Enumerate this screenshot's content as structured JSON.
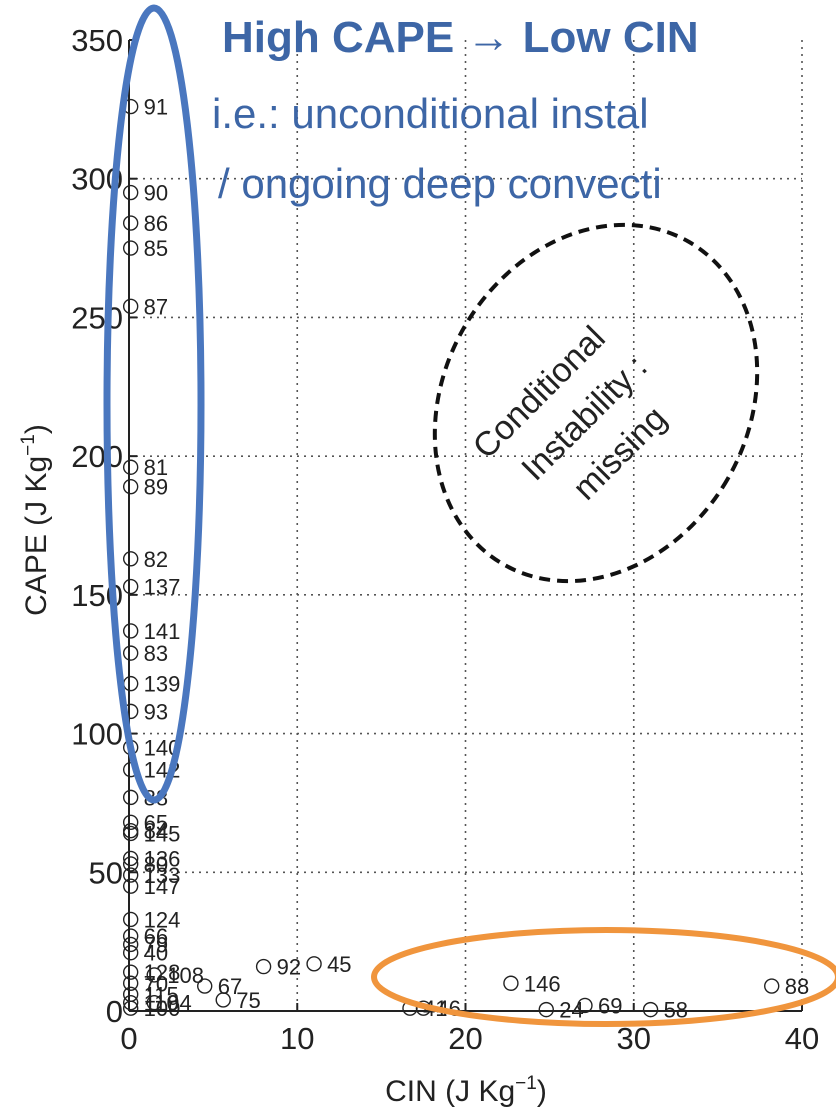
{
  "chart_data": {
    "type": "scatter",
    "xlabel": "CIN (J Kg",
    "xlabel_sup": "−1",
    "xlabel_close": ")",
    "ylabel": "CAPE (J Kg",
    "ylabel_sup": "−1",
    "ylabel_close": ")",
    "xlim": [
      0,
      40
    ],
    "ylim": [
      0,
      350
    ],
    "x_ticks": [
      0,
      10,
      20,
      30,
      40
    ],
    "y_ticks": [
      0,
      50,
      100,
      150,
      200,
      250,
      300,
      350
    ],
    "grid": true,
    "points": [
      {
        "x": 0.1,
        "y": 326,
        "label": "91"
      },
      {
        "x": 0.1,
        "y": 295,
        "label": "90"
      },
      {
        "x": 0.1,
        "y": 284,
        "label": "86"
      },
      {
        "x": 0.1,
        "y": 275,
        "label": "85"
      },
      {
        "x": 0.1,
        "y": 254,
        "label": "87"
      },
      {
        "x": 0.1,
        "y": 196,
        "label": "81"
      },
      {
        "x": 0.1,
        "y": 189,
        "label": "89"
      },
      {
        "x": 0.1,
        "y": 163,
        "label": "82"
      },
      {
        "x": 0.1,
        "y": 153,
        "label": "137"
      },
      {
        "x": 0.1,
        "y": 137,
        "label": "141"
      },
      {
        "x": 0.1,
        "y": 129,
        "label": "83"
      },
      {
        "x": 0.1,
        "y": 118,
        "label": "139"
      },
      {
        "x": 0.1,
        "y": 108,
        "label": "93"
      },
      {
        "x": 0.1,
        "y": 95,
        "label": "140"
      },
      {
        "x": 0.1,
        "y": 87,
        "label": "142"
      },
      {
        "x": 0.1,
        "y": 77,
        "label": "88"
      },
      {
        "x": 0.1,
        "y": 68,
        "label": "65"
      },
      {
        "x": 0.1,
        "y": 65,
        "label": "84"
      },
      {
        "x": 0.1,
        "y": 64,
        "label": "145"
      },
      {
        "x": 0.1,
        "y": 55,
        "label": "136"
      },
      {
        "x": 0.1,
        "y": 53,
        "label": "80"
      },
      {
        "x": 0.1,
        "y": 49,
        "label": "133"
      },
      {
        "x": 0.1,
        "y": 45,
        "label": "147"
      },
      {
        "x": 0.1,
        "y": 33,
        "label": "124"
      },
      {
        "x": 0.1,
        "y": 27,
        "label": "66"
      },
      {
        "x": 0.1,
        "y": 24,
        "label": "79"
      },
      {
        "x": 0.1,
        "y": 21,
        "label": "40"
      },
      {
        "x": 0.1,
        "y": 14,
        "label": "128"
      },
      {
        "x": 0.1,
        "y": 10,
        "label": "70"
      },
      {
        "x": 0.1,
        "y": 6,
        "label": "115"
      },
      {
        "x": 0.1,
        "y": 3,
        "label": "110"
      },
      {
        "x": 0.1,
        "y": 1,
        "label": "100"
      },
      {
        "x": 1.5,
        "y": 13,
        "label": "108"
      },
      {
        "x": 1.5,
        "y": 3,
        "label": "94"
      },
      {
        "x": 4.5,
        "y": 9,
        "label": "67"
      },
      {
        "x": 5.6,
        "y": 4,
        "label": "75"
      },
      {
        "x": 8,
        "y": 16,
        "label": "92"
      },
      {
        "x": 11,
        "y": 17,
        "label": "45"
      },
      {
        "x": 16.7,
        "y": 1,
        "label": "41"
      },
      {
        "x": 17.5,
        "y": 1,
        "label": "46"
      },
      {
        "x": 22.7,
        "y": 10,
        "label": "146"
      },
      {
        "x": 24.8,
        "y": 0.5,
        "label": "24"
      },
      {
        "x": 27.1,
        "y": 2,
        "label": "69"
      },
      {
        "x": 31,
        "y": 0.5,
        "label": "58"
      },
      {
        "x": 38.2,
        "y": 9,
        "label": "88"
      }
    ]
  },
  "annotations": {
    "headline": "High CAPE → Low CIN",
    "line1": "i.e.: unconditional instal",
    "line2": "/ ongoing deep convecti",
    "ellipse_text_1": "Conditional",
    "ellipse_text_2": "Instability :",
    "ellipse_text_3": "missing"
  },
  "colors": {
    "blue": "#4a77bf",
    "orange": "#f0953d",
    "title_blue": "#3d66a6",
    "ink": "#222222",
    "grid": "#555555"
  }
}
